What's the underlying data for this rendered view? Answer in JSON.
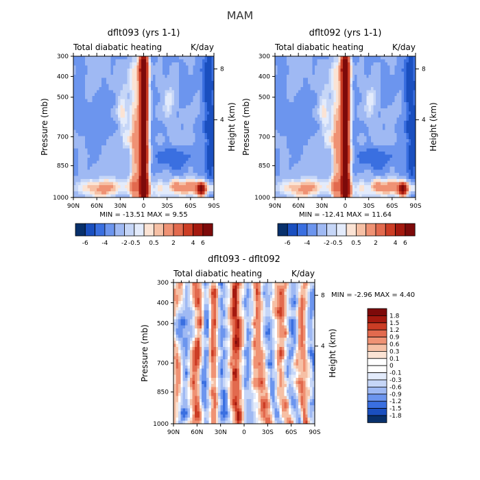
{
  "page_title": "MAM",
  "colors": {
    "diverging_palette": [
      "#08306b",
      "#1a4fbf",
      "#3a6fe0",
      "#6c95ee",
      "#9fb9f3",
      "#c6d6f7",
      "#e3ebfb",
      "#fbe3d4",
      "#f6c0a5",
      "#ef9274",
      "#e26a4e",
      "#cc3d25",
      "#a4190f",
      "#7d0a0a"
    ]
  },
  "chart_data": [
    {
      "type": "heatmap",
      "title": "dflt093 (yrs 1-1)",
      "subtitle_left": "Total diabatic heating",
      "subtitle_right": "K/day",
      "xlabel": "",
      "ylabel": "Pressure (mb)",
      "ylabel_right": "Height (km)",
      "x_ticks": [
        "90N",
        "60N",
        "30N",
        "0",
        "30S",
        "60S",
        "90S"
      ],
      "y_ticks": [
        "300",
        "400",
        "500",
        "700",
        "850",
        "1000"
      ],
      "y_right_ticks": [
        "8",
        "4"
      ],
      "min_max_text": "MIN = -13.51   MAX =   9.55",
      "colorbar_labels": [
        "-6",
        "-4",
        "-2",
        "-0.5",
        "0.5",
        "2",
        "4",
        "6"
      ],
      "pattern": "mean"
    },
    {
      "type": "heatmap",
      "title": "dflt092 (yrs 1-1)",
      "subtitle_left": "Total diabatic heating",
      "subtitle_right": "K/day",
      "xlabel": "",
      "ylabel": "Pressure (mb)",
      "ylabel_right": "Height (km)",
      "x_ticks": [
        "90N",
        "60N",
        "30N",
        "0",
        "30S",
        "60S",
        "90S"
      ],
      "y_ticks": [
        "300",
        "400",
        "500",
        "700",
        "850",
        "1000"
      ],
      "y_right_ticks": [
        "8",
        "4"
      ],
      "min_max_text": "MIN = -12.41   MAX =  11.64",
      "colorbar_labels": [
        "-6",
        "-4",
        "-2",
        "-0.5",
        "0.5",
        "2",
        "4",
        "6"
      ],
      "pattern": "mean"
    },
    {
      "type": "heatmap",
      "title": "dflt093 - dflt092",
      "subtitle_left": "Total diabatic heating",
      "subtitle_right": "K/day",
      "xlabel": "",
      "ylabel": "Pressure (mb)",
      "ylabel_right": "Height (km)",
      "x_ticks": [
        "90N",
        "60N",
        "30N",
        "0",
        "30S",
        "60S",
        "90S"
      ],
      "y_ticks": [
        "300",
        "400",
        "500",
        "700",
        "850",
        "1000"
      ],
      "y_right_ticks": [
        "8",
        "4"
      ],
      "min_max_text": "MIN =   -2.96   MAX =   4.40",
      "colorbar_labels": [
        "1.8",
        "1.5",
        "1.2",
        "0.9",
        "0.6",
        "0.3",
        "0.1",
        "0",
        "-0.1",
        "-0.3",
        "-0.6",
        "-0.9",
        "-1.2",
        "-1.5",
        "-1.8"
      ],
      "pattern": "diff"
    }
  ]
}
